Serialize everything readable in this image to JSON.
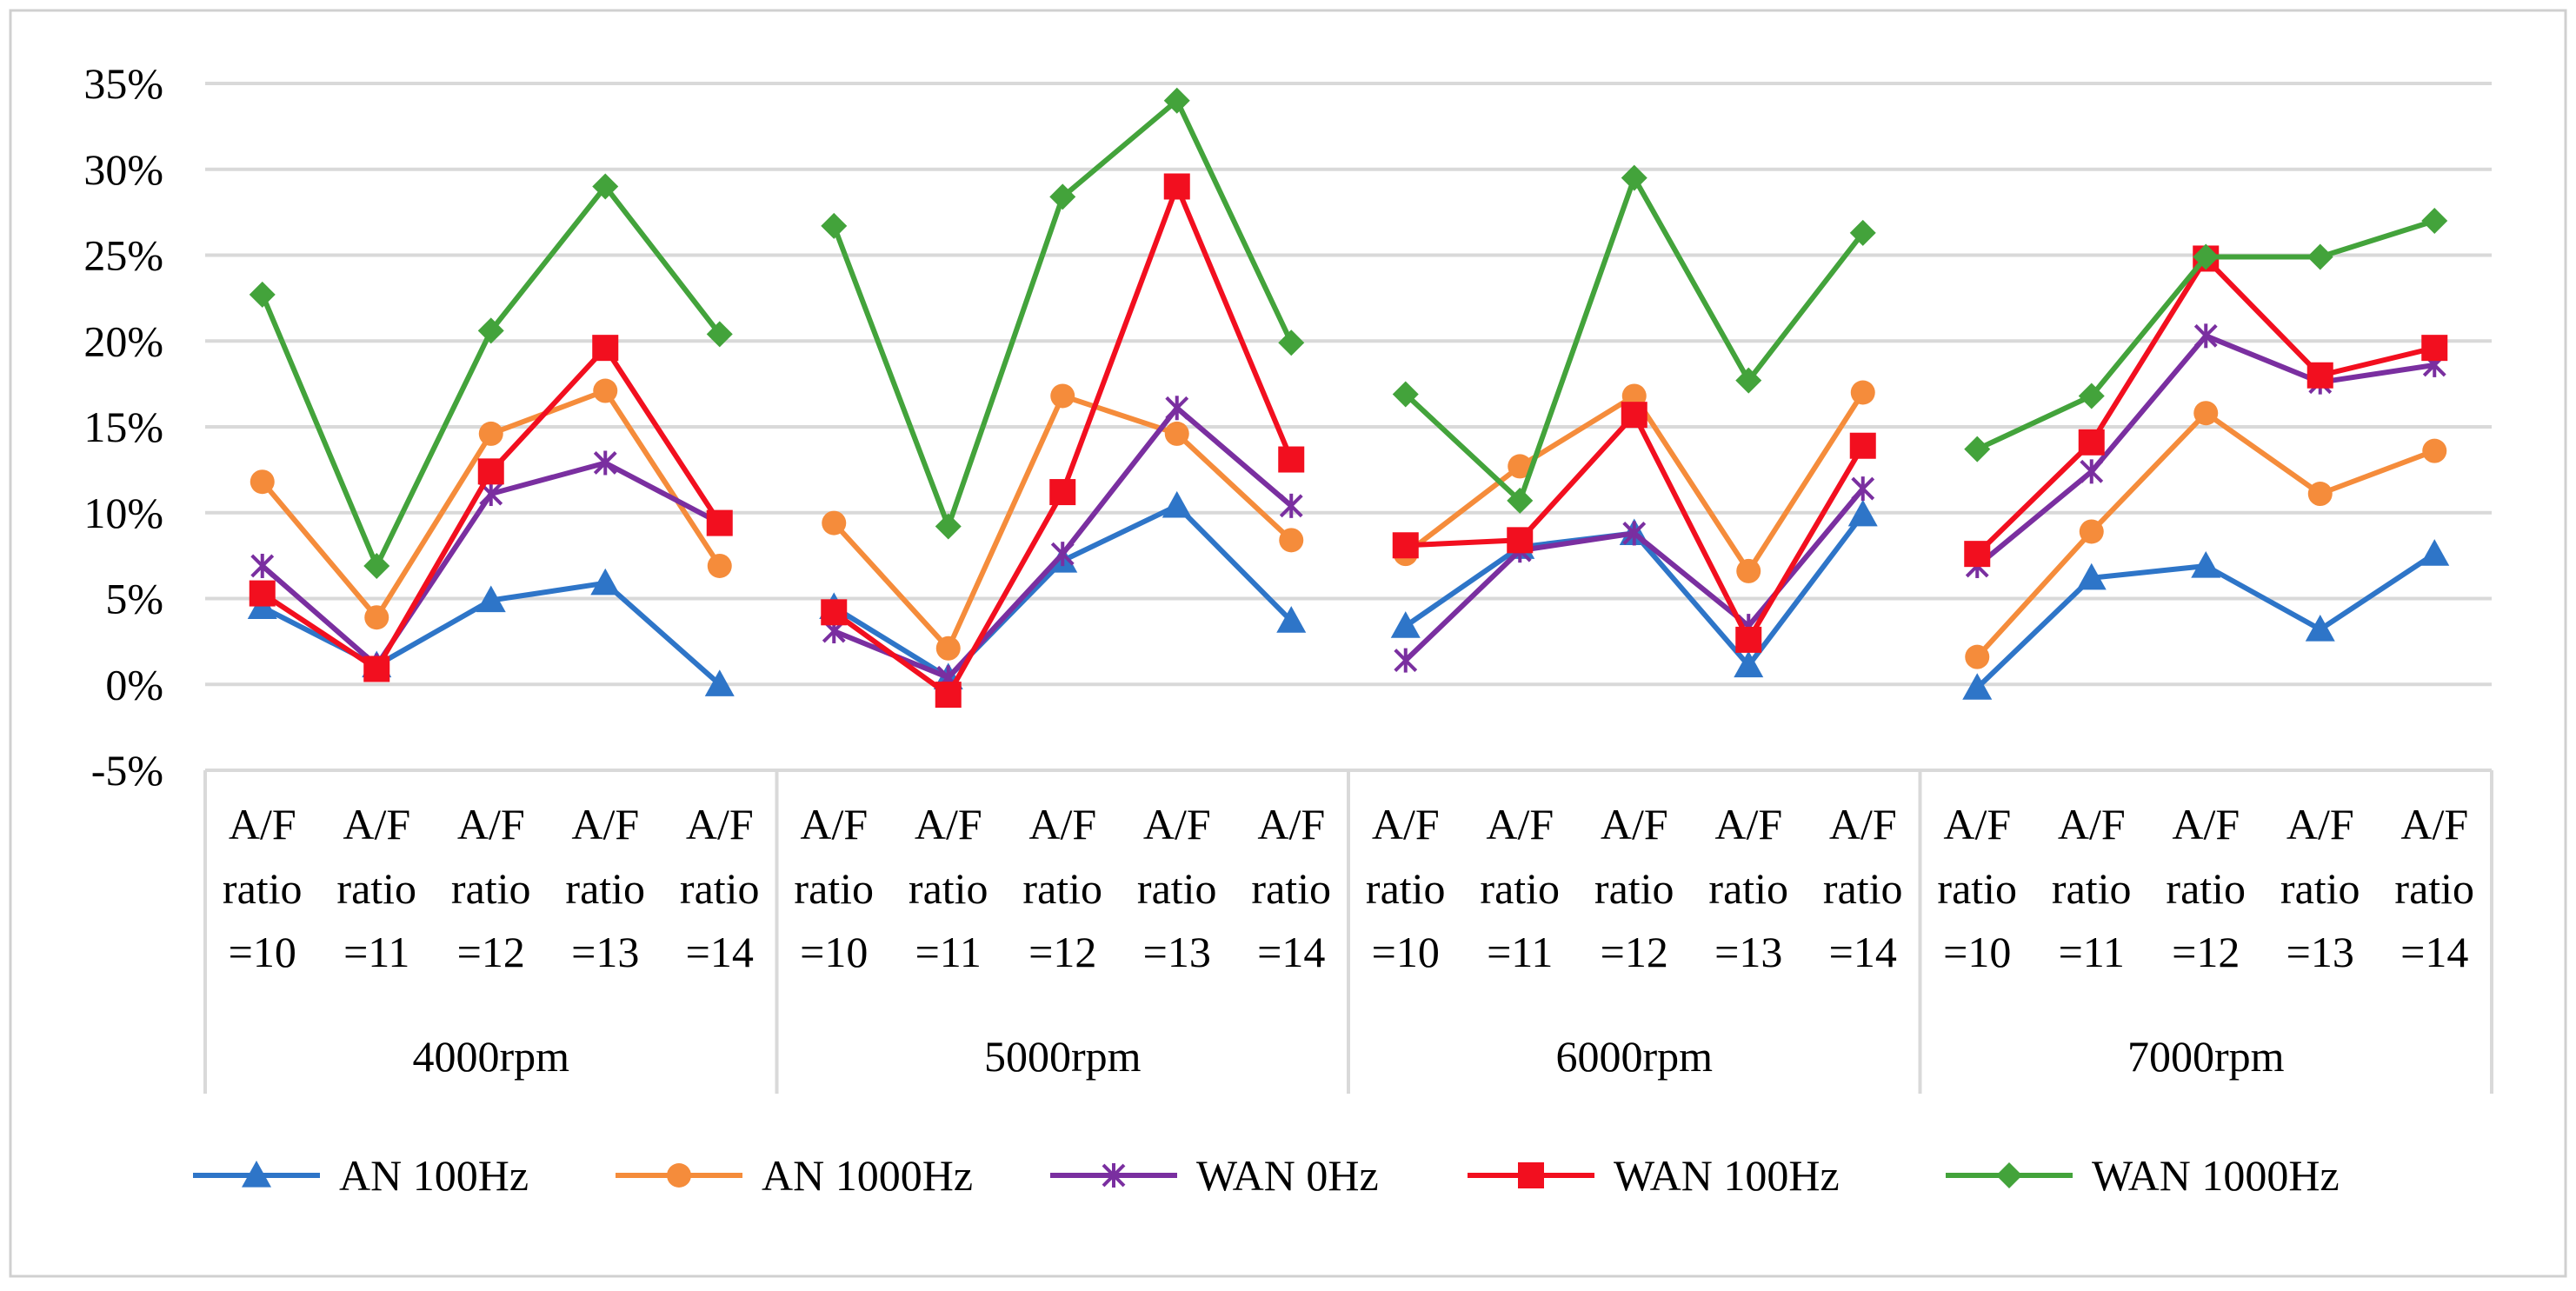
{
  "chart_data": {
    "type": "line",
    "title": "",
    "xlabel": "",
    "ylabel": "",
    "ylim": [
      -0.05,
      0.35
    ],
    "y_ticks": [
      "35%",
      "30%",
      "25%",
      "20%",
      "15%",
      "10%",
      "5%",
      "0%",
      "-5%"
    ],
    "y_tick_values": [
      0.35,
      0.3,
      0.25,
      0.2,
      0.15,
      0.1,
      0.05,
      0.0,
      -0.05
    ],
    "groups": [
      "4000rpm",
      "5000rpm",
      "6000rpm",
      "7000rpm"
    ],
    "subcategories": [
      [
        "A/F",
        "ratio",
        "=10"
      ],
      [
        "A/F",
        "ratio",
        "=11"
      ],
      [
        "A/F",
        "ratio",
        "=12"
      ],
      [
        "A/F",
        "ratio",
        "=13"
      ],
      [
        "A/F",
        "ratio",
        "=14"
      ]
    ],
    "grid": true,
    "legend_position": "bottom",
    "series": [
      {
        "name": "AN 100Hz",
        "color": "#2E75C8",
        "marker": "triangle",
        "values": [
          [
            0.045,
            0.011,
            0.049,
            0.059,
            0.0
          ],
          [
            0.045,
            0.004,
            0.072,
            0.104,
            0.037
          ],
          [
            0.034,
            0.08,
            0.088,
            0.011,
            0.099
          ],
          [
            -0.002,
            0.062,
            0.069,
            0.032,
            0.076
          ]
        ]
      },
      {
        "name": "AN 1000Hz",
        "color": "#F58C3B",
        "marker": "circle",
        "values": [
          [
            0.118,
            0.039,
            0.146,
            0.171,
            0.069
          ],
          [
            0.094,
            0.021,
            0.168,
            0.146,
            0.084
          ],
          [
            0.076,
            0.127,
            0.168,
            0.066,
            0.17
          ],
          [
            0.016,
            0.089,
            0.158,
            0.111,
            0.136
          ]
        ]
      },
      {
        "name": "WAN 0Hz",
        "color": "#7A2FA0",
        "marker": "star",
        "values": [
          [
            0.069,
            0.011,
            0.111,
            0.129,
            0.094
          ],
          [
            0.031,
            0.004,
            0.076,
            0.161,
            0.104
          ],
          [
            0.014,
            0.078,
            0.088,
            0.034,
            0.114
          ],
          [
            0.069,
            0.124,
            0.203,
            0.176,
            0.186
          ]
        ]
      },
      {
        "name": "WAN 100Hz",
        "color": "#F20F1F",
        "marker": "square",
        "values": [
          [
            0.053,
            0.009,
            0.124,
            0.196,
            0.094
          ],
          [
            0.042,
            -0.006,
            0.112,
            0.29,
            0.131
          ],
          [
            0.081,
            0.084,
            0.157,
            0.026,
            0.139
          ],
          [
            0.076,
            0.141,
            0.248,
            0.18,
            0.196
          ]
        ]
      },
      {
        "name": "WAN 1000Hz",
        "color": "#43A33B",
        "marker": "diamond",
        "values": [
          [
            0.227,
            0.069,
            0.206,
            0.29,
            0.204
          ],
          [
            0.267,
            0.092,
            0.284,
            0.34,
            0.199
          ],
          [
            0.169,
            0.107,
            0.295,
            0.177,
            0.263
          ],
          [
            0.137,
            0.168,
            0.249,
            0.249,
            0.27
          ]
        ]
      }
    ]
  }
}
